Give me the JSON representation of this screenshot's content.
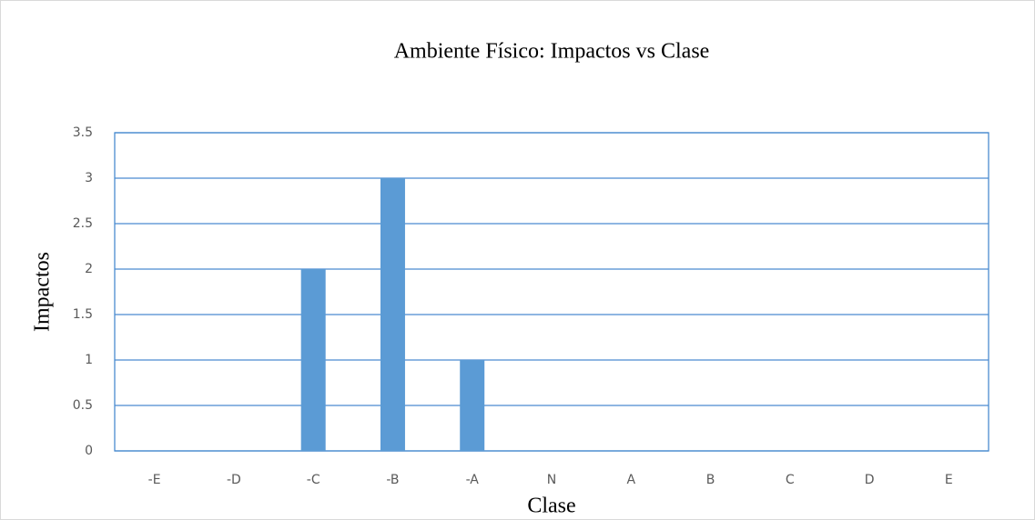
{
  "chart_data": {
    "type": "bar",
    "title": "Ambiente Físico: Impactos vs Clase",
    "x_label": "Clase",
    "y_label": "Impactos",
    "categories": [
      "-E",
      "-D",
      "-C",
      "-B",
      "-A",
      "N",
      "A",
      "B",
      "C",
      "D",
      "E"
    ],
    "values": [
      0,
      0,
      2,
      3,
      1,
      0,
      0,
      0,
      0,
      0,
      0
    ],
    "color": "#5b9bd5",
    "grid_color": "#4a8bd0",
    "ylim": [
      0,
      3.5
    ],
    "yticks": [
      0,
      0.5,
      1,
      1.5,
      2,
      2.5,
      3,
      3.5
    ],
    "grid": true
  }
}
